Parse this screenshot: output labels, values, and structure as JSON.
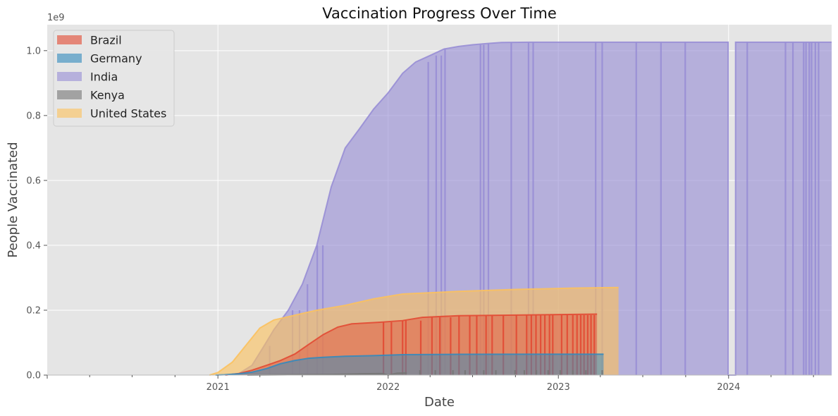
{
  "chart_data": {
    "type": "area",
    "title": "Vaccination Progress Over Time",
    "xlabel": "Date",
    "ylabel": "People Vaccinated",
    "y_offset_label": "1e9",
    "xlim": [
      "2020-01-01",
      "2024-08-09"
    ],
    "ylim": [
      0,
      1.08
    ],
    "y_ticks": [
      {
        "value": 0.0,
        "label": "0.0"
      },
      {
        "value": 0.2,
        "label": "0.2"
      },
      {
        "value": 0.4,
        "label": "0.4"
      },
      {
        "value": 0.6,
        "label": "0.6"
      },
      {
        "value": 0.8,
        "label": "0.8"
      },
      {
        "value": 1.0,
        "label": "1.0"
      }
    ],
    "x_ticks": [
      {
        "date": "2021-01-01",
        "label": "2021"
      },
      {
        "date": "2022-01-01",
        "label": "2022"
      },
      {
        "date": "2023-01-01",
        "label": "2023"
      },
      {
        "date": "2024-01-01",
        "label": "2024"
      }
    ],
    "grid": true,
    "legend_position": "top-left",
    "background_color": "#e5e5e5",
    "series": [
      {
        "name": "India",
        "fill_color": "#988ed5",
        "line_color": "#988ed5",
        "fill_opacity": 0.62,
        "points": [
          [
            "2021-01-16",
            0.0
          ],
          [
            "2021-02-15",
            0.005
          ],
          [
            "2021-03-15",
            0.03
          ],
          [
            "2021-04-10",
            0.09
          ],
          [
            "2021-05-01",
            0.14
          ],
          [
            "2021-06-01",
            0.2
          ],
          [
            "2021-07-01",
            0.28
          ],
          [
            "2021-08-01",
            0.4
          ],
          [
            "2021-09-01",
            0.58
          ],
          [
            "2021-10-01",
            0.7
          ],
          [
            "2021-11-01",
            0.76
          ],
          [
            "2021-12-01",
            0.82
          ],
          [
            "2022-01-01",
            0.87
          ],
          [
            "2022-02-01",
            0.93
          ],
          [
            "2022-03-01",
            0.965
          ],
          [
            "2022-04-01",
            0.985
          ],
          [
            "2022-05-01",
            1.005
          ],
          [
            "2022-06-01",
            1.013
          ],
          [
            "2022-07-01",
            1.018
          ],
          [
            "2022-08-01",
            1.022
          ],
          [
            "2022-09-01",
            1.025
          ],
          [
            "2022-11-01",
            1.026
          ],
          [
            "2023-12-31",
            1.026
          ],
          [
            "2023-12-31",
            0.0
          ],
          [
            "2024-01-16",
            0.0
          ],
          [
            "2024-01-16",
            1.026
          ],
          [
            "2024-08-09",
            1.026
          ]
        ],
        "dropouts": [
          "2021-04-22",
          "2021-06-10",
          "2021-06-25",
          "2021-07-12",
          "2021-08-02",
          "2021-08-14",
          "2022-03-28",
          "2022-04-14",
          "2022-04-25",
          "2022-05-03",
          "2022-07-18",
          "2022-07-25",
          "2022-08-04",
          "2022-09-22",
          "2022-10-29",
          "2022-11-08",
          "2023-03-22",
          "2023-04-05",
          "2023-06-17",
          "2023-08-09",
          "2023-09-30",
          "2024-02-10",
          "2024-05-02",
          "2024-05-18",
          "2024-06-10",
          "2024-06-15",
          "2024-06-22",
          "2024-06-27",
          "2024-07-05",
          "2024-07-12"
        ]
      },
      {
        "name": "United States",
        "fill_color": "#fbc15e",
        "line_color": "#fbc15e",
        "fill_opacity": 0.62,
        "points": [
          [
            "2020-12-14",
            0.0
          ],
          [
            "2021-01-01",
            0.008
          ],
          [
            "2021-02-01",
            0.04
          ],
          [
            "2021-03-01",
            0.09
          ],
          [
            "2021-04-01",
            0.145
          ],
          [
            "2021-05-01",
            0.17
          ],
          [
            "2021-06-01",
            0.18
          ],
          [
            "2021-07-01",
            0.19
          ],
          [
            "2021-08-01",
            0.2
          ],
          [
            "2021-10-01",
            0.215
          ],
          [
            "2021-12-01",
            0.235
          ],
          [
            "2022-02-01",
            0.25
          ],
          [
            "2022-06-01",
            0.258
          ],
          [
            "2022-10-01",
            0.264
          ],
          [
            "2023-02-01",
            0.268
          ],
          [
            "2023-05-10",
            0.27
          ]
        ]
      },
      {
        "name": "Brazil",
        "fill_color": "#e24a33",
        "line_color": "#e24a33",
        "fill_opacity": 0.45,
        "points": [
          [
            "2021-01-18",
            0.0
          ],
          [
            "2021-02-15",
            0.005
          ],
          [
            "2021-03-15",
            0.015
          ],
          [
            "2021-04-15",
            0.03
          ],
          [
            "2021-05-15",
            0.045
          ],
          [
            "2021-06-15",
            0.065
          ],
          [
            "2021-07-15",
            0.095
          ],
          [
            "2021-08-15",
            0.125
          ],
          [
            "2021-09-15",
            0.148
          ],
          [
            "2021-10-15",
            0.158
          ],
          [
            "2021-12-15",
            0.163
          ],
          [
            "2022-02-01",
            0.168
          ],
          [
            "2022-03-15",
            0.178
          ],
          [
            "2022-06-01",
            0.183
          ],
          [
            "2022-10-01",
            0.185
          ],
          [
            "2023-03-25",
            0.188
          ]
        ],
        "dropouts": [
          "2021-12-22",
          "2022-01-08",
          "2022-02-01",
          "2022-02-08",
          "2022-03-12",
          "2022-04-05",
          "2022-04-22",
          "2022-05-15",
          "2022-06-02",
          "2022-06-25",
          "2022-07-10",
          "2022-07-30",
          "2022-08-12",
          "2022-09-05",
          "2022-10-03",
          "2022-10-25",
          "2022-11-04",
          "2022-11-14",
          "2022-11-24",
          "2022-12-03",
          "2022-12-13",
          "2022-12-20",
          "2023-01-08",
          "2023-01-20",
          "2023-02-01",
          "2023-02-10",
          "2023-02-18",
          "2023-02-25",
          "2023-03-05",
          "2023-03-12",
          "2023-03-19"
        ]
      },
      {
        "name": "Germany",
        "fill_color": "#348abd",
        "line_color": "#348abd",
        "fill_opacity": 0.5,
        "points": [
          [
            "2020-12-27",
            0.0
          ],
          [
            "2021-01-15",
            0.001
          ],
          [
            "2021-02-15",
            0.004
          ],
          [
            "2021-03-15",
            0.009
          ],
          [
            "2021-04-15",
            0.02
          ],
          [
            "2021-05-15",
            0.035
          ],
          [
            "2021-06-15",
            0.045
          ],
          [
            "2021-07-15",
            0.052
          ],
          [
            "2021-08-15",
            0.055
          ],
          [
            "2021-10-01",
            0.058
          ],
          [
            "2021-12-01",
            0.06
          ],
          [
            "2022-02-01",
            0.063
          ],
          [
            "2022-06-01",
            0.064
          ],
          [
            "2023-04-08",
            0.0645
          ]
        ]
      },
      {
        "name": "Kenya",
        "fill_color": "#777777",
        "line_color": "#777777",
        "fill_opacity": 0.6,
        "points": [
          [
            "2021-03-05",
            0.0
          ],
          [
            "2021-06-01",
            0.001
          ],
          [
            "2021-09-01",
            0.002
          ],
          [
            "2021-11-01",
            0.004
          ],
          [
            "2021-12-20",
            0.005
          ],
          [
            "2022-01-01",
            0.0
          ],
          [
            "2022-01-20",
            0.006
          ],
          [
            "2022-02-10",
            0.007
          ]
        ],
        "spikes": [
          "2022-03-10",
          "2022-04-12",
          "2022-05-20",
          "2022-06-15",
          "2022-07-25",
          "2022-08-20",
          "2022-09-30",
          "2022-10-20",
          "2022-11-15",
          "2022-12-10",
          "2023-01-05",
          "2023-02-01",
          "2023-03-01",
          "2023-04-05"
        ]
      }
    ],
    "legend": [
      "Brazil",
      "Germany",
      "India",
      "Kenya",
      "United States"
    ]
  }
}
